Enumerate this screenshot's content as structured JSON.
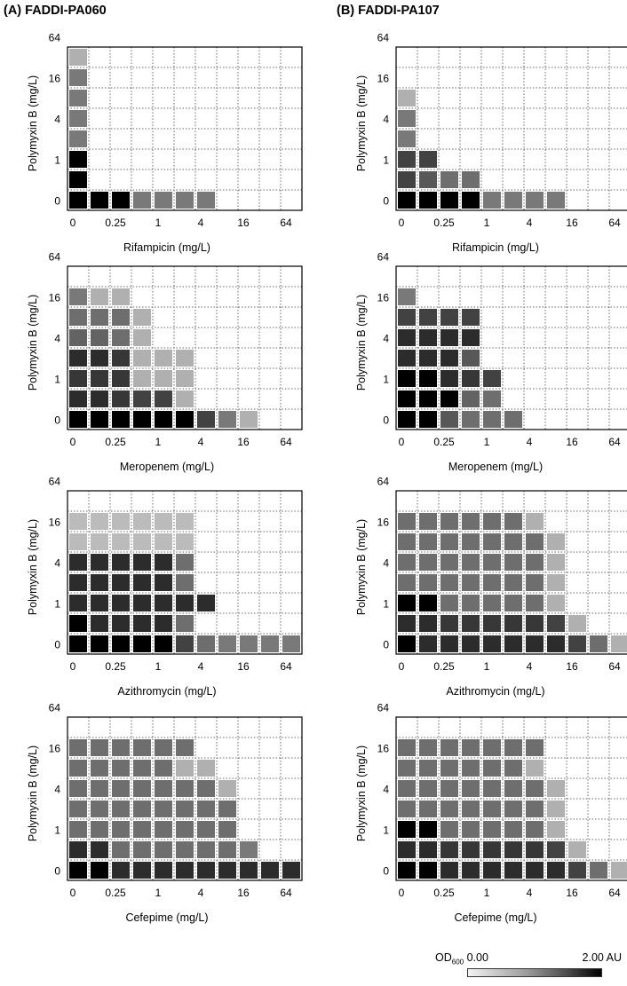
{
  "columns": [
    {
      "label": "(A) FADDI-PA060"
    },
    {
      "label": "(B) FADDI-PA107"
    }
  ],
  "legend": {
    "label_prefix": "OD",
    "label_sub": "600",
    "min_label": "0.00",
    "max_label": "2.00 AU",
    "range": [
      0,
      2
    ]
  },
  "chart_data": [
    {
      "type": "heatmap",
      "column": 0,
      "row": 0,
      "xlabel": "Rifampicin (mg/L)",
      "ylabel": "Polymyxin B (mg/L)",
      "xticks": [
        "0",
        "0.25",
        "1",
        "4",
        "16",
        "64"
      ],
      "yticks": [
        "0",
        "1",
        "4",
        "16",
        "64"
      ],
      "value_range": [
        0,
        2
      ],
      "cells_bottom_to_top": [
        [
          2.0,
          2.0,
          2.0,
          0.9,
          0.9,
          0.9,
          0.9,
          0,
          0,
          0,
          0
        ],
        [
          2.0,
          0,
          0,
          0,
          0,
          0,
          0,
          0,
          0,
          0,
          0
        ],
        [
          2.0,
          0,
          0,
          0,
          0,
          0,
          0,
          0,
          0,
          0,
          0
        ],
        [
          0.9,
          0,
          0,
          0,
          0,
          0,
          0,
          0,
          0,
          0,
          0
        ],
        [
          0.9,
          0,
          0,
          0,
          0,
          0,
          0,
          0,
          0,
          0,
          0
        ],
        [
          0.9,
          0,
          0,
          0,
          0,
          0,
          0,
          0,
          0,
          0,
          0
        ],
        [
          0.9,
          0,
          0,
          0,
          0,
          0,
          0,
          0,
          0,
          0,
          0
        ],
        [
          0.4,
          0,
          0,
          0,
          0,
          0,
          0,
          0,
          0,
          0,
          0
        ]
      ]
    },
    {
      "type": "heatmap",
      "column": 1,
      "row": 0,
      "xlabel": "Rifampicin (mg/L)",
      "ylabel": "Polymyxin B (mg/L)",
      "xticks": [
        "0",
        "0.25",
        "1",
        "4",
        "16",
        "64"
      ],
      "yticks": [
        "0",
        "1",
        "4",
        "16",
        "64"
      ],
      "value_range": [
        0,
        2
      ],
      "cells_bottom_to_top": [
        [
          2.0,
          2.0,
          2.0,
          2.0,
          0.9,
          0.9,
          0.9,
          0.9,
          0,
          0,
          0
        ],
        [
          1.4,
          1.2,
          1.0,
          1.0,
          0,
          0,
          0,
          0,
          0,
          0,
          0
        ],
        [
          1.4,
          1.4,
          0,
          0,
          0,
          0,
          0,
          0,
          0,
          0,
          0
        ],
        [
          0.9,
          0,
          0,
          0,
          0,
          0,
          0,
          0,
          0,
          0,
          0
        ],
        [
          0.9,
          0,
          0,
          0,
          0,
          0,
          0,
          0,
          0,
          0,
          0
        ],
        [
          0.4,
          0,
          0,
          0,
          0,
          0,
          0,
          0,
          0,
          0,
          0
        ],
        [
          0,
          0,
          0,
          0,
          0,
          0,
          0,
          0,
          0,
          0,
          0
        ],
        [
          0,
          0,
          0,
          0,
          0,
          0,
          0,
          0,
          0,
          0,
          0
        ]
      ]
    },
    {
      "type": "heatmap",
      "column": 0,
      "row": 1,
      "xlabel": "Meropenem (mg/L)",
      "ylabel": "Polymyxin B (mg/L)",
      "xticks": [
        "0",
        "0.25",
        "1",
        "4",
        "16",
        "64"
      ],
      "yticks": [
        "0",
        "1",
        "4",
        "16",
        "64"
      ],
      "value_range": [
        0,
        2
      ],
      "cells_bottom_to_top": [
        [
          2.0,
          2.0,
          2.0,
          2.0,
          2.0,
          2.0,
          1.4,
          0.9,
          0.4,
          0,
          0
        ],
        [
          1.6,
          1.6,
          1.5,
          1.4,
          1.4,
          0.4,
          0,
          0,
          0,
          0,
          0
        ],
        [
          1.5,
          1.5,
          1.5,
          0.4,
          0.4,
          0.4,
          0,
          0,
          0,
          0,
          0
        ],
        [
          1.6,
          1.6,
          1.5,
          0.4,
          0.4,
          0.4,
          0,
          0,
          0,
          0,
          0
        ],
        [
          1.1,
          1.1,
          1.0,
          0.4,
          0,
          0,
          0,
          0,
          0,
          0,
          0
        ],
        [
          1.0,
          1.0,
          1.0,
          0.4,
          0,
          0,
          0,
          0,
          0,
          0,
          0
        ],
        [
          0.9,
          0.4,
          0.4,
          0,
          0,
          0,
          0,
          0,
          0,
          0,
          0
        ],
        [
          0,
          0,
          0,
          0,
          0,
          0,
          0,
          0,
          0,
          0,
          0
        ]
      ]
    },
    {
      "type": "heatmap",
      "column": 1,
      "row": 1,
      "xlabel": "Meropenem (mg/L)",
      "ylabel": "Polymyxin B (mg/L)",
      "xticks": [
        "0",
        "0.25",
        "1",
        "4",
        "16",
        "64"
      ],
      "yticks": [
        "0",
        "1",
        "4",
        "16",
        "64"
      ],
      "value_range": [
        0,
        2
      ],
      "cells_bottom_to_top": [
        [
          2.0,
          2.0,
          1.2,
          1.0,
          1.0,
          1.0,
          0,
          0,
          0,
          0,
          0
        ],
        [
          2.0,
          2.0,
          2.0,
          1.1,
          1.0,
          0,
          0,
          0,
          0,
          0,
          0
        ],
        [
          2.0,
          2.0,
          1.6,
          1.5,
          1.4,
          0,
          0,
          0,
          0,
          0,
          0
        ],
        [
          1.6,
          1.6,
          1.6,
          1.2,
          0,
          0,
          0,
          0,
          0,
          0,
          0
        ],
        [
          1.6,
          1.6,
          1.6,
          1.6,
          0,
          0,
          0,
          0,
          0,
          0,
          0
        ],
        [
          1.4,
          1.4,
          1.4,
          1.4,
          0,
          0,
          0,
          0,
          0,
          0,
          0
        ],
        [
          0.9,
          0,
          0,
          0,
          0,
          0,
          0,
          0,
          0,
          0,
          0
        ],
        [
          0,
          0,
          0,
          0,
          0,
          0,
          0,
          0,
          0,
          0,
          0
        ]
      ]
    },
    {
      "type": "heatmap",
      "column": 0,
      "row": 2,
      "xlabel": "Azithromycin (mg/L)",
      "ylabel": "Polymyxin B (mg/L)",
      "xticks": [
        "0",
        "0.25",
        "1",
        "4",
        "16",
        "64"
      ],
      "yticks": [
        "0",
        "1",
        "4",
        "16",
        "64"
      ],
      "value_range": [
        0,
        2
      ],
      "cells_bottom_to_top": [
        [
          2.0,
          2.0,
          2.0,
          2.0,
          2.0,
          1.4,
          1.0,
          0.9,
          0.9,
          0.9,
          0.9
        ],
        [
          2.0,
          1.6,
          1.6,
          1.6,
          1.6,
          1.0,
          0,
          0,
          0,
          0,
          0
        ],
        [
          1.6,
          1.6,
          1.6,
          1.6,
          1.6,
          1.6,
          1.6,
          0,
          0,
          0,
          0
        ],
        [
          1.6,
          1.6,
          1.6,
          1.6,
          1.6,
          1.0,
          0,
          0,
          0,
          0,
          0
        ],
        [
          1.6,
          1.6,
          1.6,
          1.6,
          1.6,
          1.0,
          0,
          0,
          0,
          0,
          0
        ],
        [
          0.3,
          0.3,
          0.3,
          0.3,
          0.3,
          0.3,
          0,
          0,
          0,
          0,
          0
        ],
        [
          0.3,
          0.3,
          0.3,
          0.3,
          0.3,
          0.3,
          0,
          0,
          0,
          0,
          0
        ],
        [
          0,
          0,
          0,
          0,
          0,
          0,
          0,
          0,
          0,
          0,
          0
        ]
      ]
    },
    {
      "type": "heatmap",
      "column": 1,
      "row": 2,
      "xlabel": "Azithromycin (mg/L)",
      "ylabel": "Polymyxin B (mg/L)",
      "xticks": [
        "0",
        "0.25",
        "1",
        "4",
        "16",
        "64"
      ],
      "yticks": [
        "0",
        "1",
        "4",
        "16",
        "64"
      ],
      "value_range": [
        0,
        2
      ],
      "cells_bottom_to_top": [
        [
          2.0,
          1.6,
          1.6,
          1.6,
          1.6,
          1.6,
          1.6,
          1.6,
          1.4,
          1.0,
          0.4
        ],
        [
          1.6,
          1.6,
          1.5,
          1.5,
          1.5,
          1.5,
          1.5,
          1.4,
          0.4,
          0,
          0
        ],
        [
          2.0,
          2.0,
          1.0,
          1.0,
          1.0,
          1.0,
          1.0,
          0.4,
          0,
          0,
          0
        ],
        [
          1.0,
          1.0,
          1.0,
          1.0,
          1.0,
          1.0,
          1.0,
          0.4,
          0,
          0,
          0
        ],
        [
          1.0,
          1.0,
          1.0,
          1.0,
          1.0,
          1.0,
          1.0,
          0.4,
          0,
          0,
          0
        ],
        [
          1.0,
          1.0,
          1.0,
          1.0,
          1.0,
          1.0,
          1.0,
          0.4,
          0,
          0,
          0
        ],
        [
          1.0,
          1.0,
          1.0,
          1.0,
          1.0,
          1.0,
          0.4,
          0,
          0,
          0,
          0
        ],
        [
          0,
          0,
          0,
          0,
          0,
          0,
          0,
          0,
          0,
          0,
          0
        ]
      ]
    },
    {
      "type": "heatmap",
      "column": 0,
      "row": 3,
      "xlabel": "Cefepime (mg/L)",
      "ylabel": "Polymyxin B (mg/L)",
      "xticks": [
        "0",
        "0.25",
        "1",
        "4",
        "16",
        "64"
      ],
      "yticks": [
        "0",
        "1",
        "4",
        "16",
        "64"
      ],
      "value_range": [
        0,
        2
      ],
      "cells_bottom_to_top": [
        [
          2.0,
          2.0,
          1.6,
          1.6,
          1.6,
          1.6,
          1.6,
          1.6,
          1.6,
          1.6,
          1.6
        ],
        [
          1.6,
          1.6,
          1.0,
          1.0,
          1.0,
          1.0,
          1.0,
          1.0,
          0.9,
          0,
          0
        ],
        [
          1.0,
          1.0,
          1.0,
          1.0,
          1.0,
          1.0,
          1.0,
          1.0,
          0,
          0,
          0
        ],
        [
          1.0,
          1.0,
          1.0,
          1.0,
          1.0,
          1.0,
          1.0,
          1.0,
          0,
          0,
          0
        ],
        [
          1.0,
          1.0,
          1.0,
          1.0,
          1.0,
          1.0,
          1.0,
          0.4,
          0,
          0,
          0
        ],
        [
          1.0,
          1.0,
          1.0,
          1.0,
          1.0,
          0.4,
          0.4,
          0,
          0,
          0,
          0
        ],
        [
          1.0,
          1.0,
          1.0,
          1.0,
          1.0,
          1.0,
          0,
          0,
          0,
          0,
          0
        ],
        [
          0,
          0,
          0,
          0,
          0,
          0,
          0,
          0,
          0,
          0,
          0
        ]
      ]
    },
    {
      "type": "heatmap",
      "column": 1,
      "row": 3,
      "xlabel": "Cefepime (mg/L)",
      "ylabel": "Polymyxin B (mg/L)",
      "xticks": [
        "0",
        "0.25",
        "1",
        "4",
        "16",
        "64"
      ],
      "yticks": [
        "0",
        "1",
        "4",
        "16",
        "64"
      ],
      "value_range": [
        0,
        2
      ],
      "cells_bottom_to_top": [
        [
          2.0,
          2.0,
          1.6,
          1.6,
          1.6,
          1.6,
          1.6,
          1.6,
          1.4,
          1.0,
          0.4
        ],
        [
          1.6,
          1.6,
          1.5,
          1.5,
          1.5,
          1.5,
          1.5,
          1.4,
          0.4,
          0,
          0
        ],
        [
          2.0,
          2.0,
          1.0,
          1.0,
          1.0,
          1.0,
          1.0,
          0.4,
          0,
          0,
          0
        ],
        [
          1.0,
          1.0,
          1.0,
          1.0,
          1.0,
          1.0,
          1.0,
          0.4,
          0,
          0,
          0
        ],
        [
          1.0,
          1.0,
          1.0,
          1.0,
          1.0,
          1.0,
          1.0,
          0.4,
          0,
          0,
          0
        ],
        [
          1.0,
          1.0,
          1.0,
          1.0,
          1.0,
          1.0,
          0.4,
          0,
          0,
          0,
          0
        ],
        [
          1.0,
          1.0,
          1.0,
          1.0,
          1.0,
          1.0,
          1.0,
          0,
          0,
          0,
          0
        ],
        [
          0,
          0,
          0,
          0,
          0,
          0,
          0,
          0,
          0,
          0,
          0
        ]
      ]
    }
  ]
}
